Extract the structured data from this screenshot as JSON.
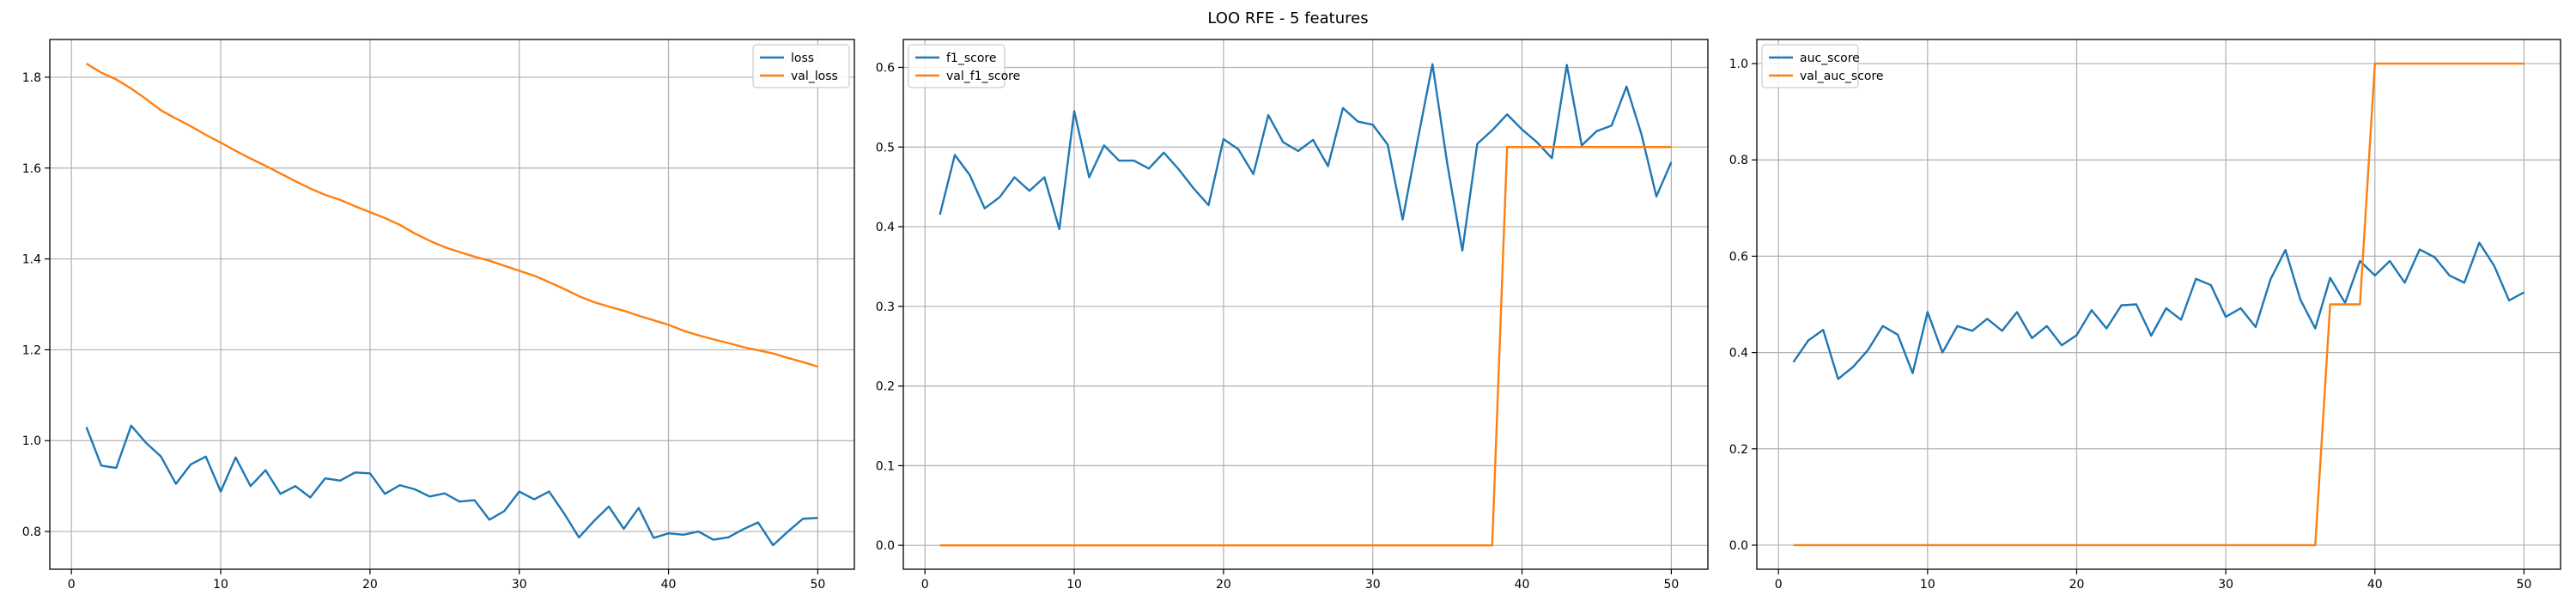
{
  "figure": {
    "suptitle": "LOO RFE - 5 features"
  },
  "colors": {
    "series_1": "#1f77b4",
    "series_2": "#ff7f0e",
    "grid": "#b0b0b0",
    "axes": "#000000",
    "background": "#ffffff"
  },
  "chart_data": [
    {
      "type": "line",
      "title": "",
      "xlabel": "",
      "ylabel": "",
      "xlim": [
        -1.45,
        52.45
      ],
      "ylim": [
        0.717,
        1.883
      ],
      "xticks": [
        0,
        10,
        20,
        30,
        40,
        50
      ],
      "yticks": [
        0.8,
        1.0,
        1.2,
        1.4,
        1.6,
        1.8
      ],
      "ytick_labels": [
        "0.8",
        "1.0",
        "1.2",
        "1.4",
        "1.6",
        "1.8"
      ],
      "grid": true,
      "legend_position": "upper right",
      "x": [
        1,
        2,
        3,
        4,
        5,
        6,
        7,
        8,
        9,
        10,
        11,
        12,
        13,
        14,
        15,
        16,
        17,
        18,
        19,
        20,
        21,
        22,
        23,
        24,
        25,
        26,
        27,
        28,
        29,
        30,
        31,
        32,
        33,
        34,
        35,
        36,
        37,
        38,
        39,
        40,
        41,
        42,
        43,
        44,
        45,
        46,
        47,
        48,
        49,
        50
      ],
      "series": [
        {
          "name": "loss",
          "values": [
            1.03,
            0.945,
            0.94,
            1.033,
            0.995,
            0.965,
            0.905,
            0.948,
            0.965,
            0.888,
            0.963,
            0.9,
            0.935,
            0.883,
            0.9,
            0.875,
            0.917,
            0.912,
            0.93,
            0.928,
            0.883,
            0.902,
            0.893,
            0.877,
            0.884,
            0.866,
            0.869,
            0.826,
            0.845,
            0.888,
            0.871,
            0.888,
            0.84,
            0.787,
            0.823,
            0.855,
            0.806,
            0.852,
            0.786,
            0.796,
            0.793,
            0.8,
            0.782,
            0.787,
            0.805,
            0.82,
            0.77,
            0.8,
            0.828,
            0.83
          ]
        },
        {
          "name": "val_loss",
          "values": [
            1.83,
            1.81,
            1.795,
            1.775,
            1.752,
            1.727,
            1.709,
            1.692,
            1.673,
            1.656,
            1.638,
            1.621,
            1.605,
            1.588,
            1.571,
            1.555,
            1.541,
            1.53,
            1.516,
            1.503,
            1.49,
            1.475,
            1.456,
            1.44,
            1.426,
            1.415,
            1.405,
            1.396,
            1.385,
            1.374,
            1.363,
            1.349,
            1.334,
            1.318,
            1.305,
            1.295,
            1.286,
            1.275,
            1.265,
            1.255,
            1.242,
            1.232,
            1.223,
            1.215,
            1.206,
            1.199,
            1.192,
            1.182,
            1.173,
            1.163
          ]
        }
      ]
    },
    {
      "type": "line",
      "title": "",
      "xlabel": "",
      "ylabel": "",
      "xlim": [
        -1.45,
        52.45
      ],
      "ylim": [
        -0.03,
        0.635
      ],
      "xticks": [
        0,
        10,
        20,
        30,
        40,
        50
      ],
      "yticks": [
        0.0,
        0.1,
        0.2,
        0.3,
        0.4,
        0.5,
        0.6
      ],
      "ytick_labels": [
        "0.0",
        "0.1",
        "0.2",
        "0.3",
        "0.4",
        "0.5",
        "0.6"
      ],
      "grid": true,
      "legend_position": "upper left",
      "x": [
        1,
        2,
        3,
        4,
        5,
        6,
        7,
        8,
        9,
        10,
        11,
        12,
        13,
        14,
        15,
        16,
        17,
        18,
        19,
        20,
        21,
        22,
        23,
        24,
        25,
        26,
        27,
        28,
        29,
        30,
        31,
        32,
        33,
        34,
        35,
        36,
        37,
        38,
        39,
        40,
        41,
        42,
        43,
        44,
        45,
        46,
        47,
        48,
        49,
        50
      ],
      "series": [
        {
          "name": "f1_score",
          "values": [
            0.415,
            0.49,
            0.465,
            0.423,
            0.437,
            0.462,
            0.445,
            0.462,
            0.397,
            0.545,
            0.462,
            0.502,
            0.483,
            0.483,
            0.473,
            0.493,
            0.472,
            0.448,
            0.427,
            0.51,
            0.497,
            0.466,
            0.54,
            0.506,
            0.495,
            0.509,
            0.476,
            0.549,
            0.532,
            0.528,
            0.503,
            0.409,
            0.508,
            0.604,
            0.478,
            0.37,
            0.504,
            0.521,
            0.541,
            0.522,
            0.506,
            0.486,
            0.603,
            0.502,
            0.52,
            0.527,
            0.576,
            0.516,
            0.438,
            0.481
          ]
        },
        {
          "name": "val_f1_score",
          "values": [
            0,
            0,
            0,
            0,
            0,
            0,
            0,
            0,
            0,
            0,
            0,
            0,
            0,
            0,
            0,
            0,
            0,
            0,
            0,
            0,
            0,
            0,
            0,
            0,
            0,
            0,
            0,
            0,
            0,
            0,
            0,
            0,
            0,
            0,
            0,
            0,
            0,
            0,
            0.5,
            0.5,
            0.5,
            0.5,
            0.5,
            0.5,
            0.5,
            0.5,
            0.5,
            0.5,
            0.5,
            0.5
          ]
        }
      ]
    },
    {
      "type": "line",
      "title": "",
      "xlabel": "",
      "ylabel": "",
      "xlim": [
        -1.45,
        52.45
      ],
      "ylim": [
        -0.05,
        1.05
      ],
      "xticks": [
        0,
        10,
        20,
        30,
        40,
        50
      ],
      "yticks": [
        0.0,
        0.2,
        0.4,
        0.6,
        0.8,
        1.0
      ],
      "ytick_labels": [
        "0.0",
        "0.2",
        "0.4",
        "0.6",
        "0.8",
        "1.0"
      ],
      "grid": true,
      "legend_position": "upper left",
      "x": [
        1,
        2,
        3,
        4,
        5,
        6,
        7,
        8,
        9,
        10,
        11,
        12,
        13,
        14,
        15,
        16,
        17,
        18,
        19,
        20,
        21,
        22,
        23,
        24,
        25,
        26,
        27,
        28,
        29,
        30,
        31,
        32,
        33,
        34,
        35,
        36,
        37,
        38,
        39,
        40,
        41,
        42,
        43,
        44,
        45,
        46,
        47,
        48,
        49,
        50
      ],
      "series": [
        {
          "name": "auc_score",
          "values": [
            0.38,
            0.425,
            0.447,
            0.345,
            0.37,
            0.405,
            0.455,
            0.437,
            0.357,
            0.484,
            0.4,
            0.455,
            0.445,
            0.47,
            0.445,
            0.484,
            0.43,
            0.455,
            0.415,
            0.436,
            0.488,
            0.45,
            0.498,
            0.5,
            0.435,
            0.492,
            0.468,
            0.553,
            0.54,
            0.474,
            0.492,
            0.453,
            0.552,
            0.613,
            0.51,
            0.45,
            0.555,
            0.503,
            0.59,
            0.56,
            0.59,
            0.545,
            0.614,
            0.598,
            0.56,
            0.545,
            0.628,
            0.58,
            0.508,
            0.525
          ]
        },
        {
          "name": "val_auc_score",
          "values": [
            0,
            0,
            0,
            0,
            0,
            0,
            0,
            0,
            0,
            0,
            0,
            0,
            0,
            0,
            0,
            0,
            0,
            0,
            0,
            0,
            0,
            0,
            0,
            0,
            0,
            0,
            0,
            0,
            0,
            0,
            0,
            0,
            0,
            0,
            0,
            0,
            0.5,
            0.5,
            0.5,
            1,
            1,
            1,
            1,
            1,
            1,
            1,
            1,
            1,
            1,
            1
          ]
        }
      ]
    }
  ]
}
